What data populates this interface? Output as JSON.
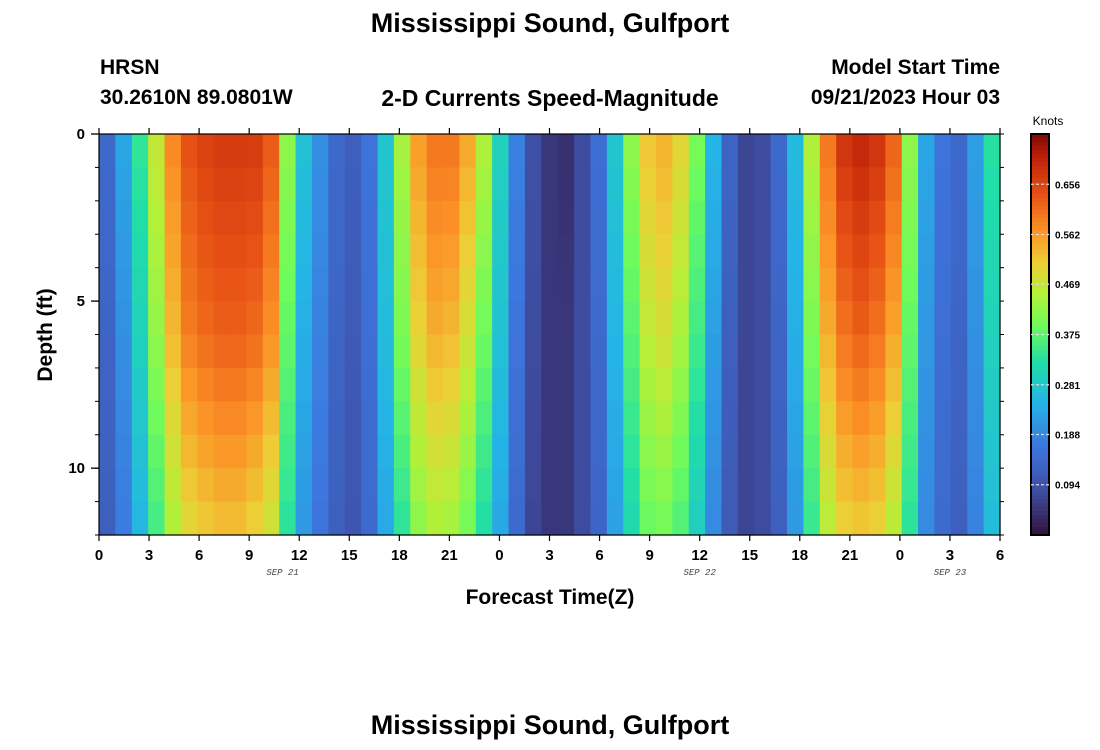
{
  "header": {
    "title": "Mississippi Sound, Gulfport",
    "station": "HRSN",
    "coords": "30.2610N  89.0801W",
    "subtitle": "2-D Currents Speed-Magnitude",
    "model_label": "Model Start Time",
    "model_time": "09/21/2023 Hour 03"
  },
  "footer": {
    "repeat_title": "Mississippi Sound, Gulfport"
  },
  "chart_data": {
    "type": "heatmap",
    "title": "2-D Currents Speed-Magnitude",
    "xlabel": "Forecast Time(Z)",
    "ylabel": "Depth (ft)",
    "x_range_hours": [
      0,
      54
    ],
    "y_range_ft": [
      0,
      12
    ],
    "x_tick_labels": [
      "0",
      "3",
      "6",
      "9",
      "12",
      "15",
      "18",
      "21",
      "0",
      "3",
      "6",
      "9",
      "12",
      "15",
      "18",
      "21",
      "0",
      "3",
      "6"
    ],
    "y_tick_labels": [
      "0",
      "5",
      "10"
    ],
    "y_tick_values": [
      0,
      5,
      10
    ],
    "date_labels": [
      {
        "text": "SEP 21",
        "hour": 11
      },
      {
        "text": "SEP 22",
        "hour": 36
      },
      {
        "text": "SEP 23",
        "hour": 51
      }
    ],
    "colorbar": {
      "unit": "Knots",
      "min": 0.0,
      "max": 0.75,
      "ticks": [
        "0.094",
        "0.188",
        "0.281",
        "0.375",
        "0.469",
        "0.562",
        "0.656"
      ],
      "tick_values": [
        0.094,
        0.188,
        0.281,
        0.375,
        0.469,
        0.562,
        0.656
      ]
    },
    "surface_speed_knots_by_hour": [
      0.14,
      0.23,
      0.34,
      0.47,
      0.58,
      0.64,
      0.66,
      0.67,
      0.67,
      0.67,
      0.63,
      0.42,
      0.27,
      0.2,
      0.14,
      0.12,
      0.16,
      0.28,
      0.44,
      0.56,
      0.6,
      0.6,
      0.55,
      0.45,
      0.3,
      0.18,
      0.09,
      0.05,
      0.04,
      0.08,
      0.15,
      0.28,
      0.42,
      0.52,
      0.54,
      0.5,
      0.4,
      0.25,
      0.13,
      0.07,
      0.08,
      0.14,
      0.26,
      0.45,
      0.6,
      0.68,
      0.7,
      0.68,
      0.62,
      0.42,
      0.23,
      0.16,
      0.14,
      0.22,
      0.33
    ],
    "depth_decay_note": "speed decreases with depth; peaks widen near 12 ft",
    "mid_depth_speed_knots_by_hour": [
      0.13,
      0.2,
      0.3,
      0.42,
      0.53,
      0.59,
      0.61,
      0.62,
      0.62,
      0.61,
      0.57,
      0.38,
      0.24,
      0.18,
      0.13,
      0.11,
      0.15,
      0.26,
      0.4,
      0.5,
      0.54,
      0.53,
      0.48,
      0.39,
      0.27,
      0.16,
      0.08,
      0.05,
      0.05,
      0.08,
      0.14,
      0.25,
      0.37,
      0.46,
      0.48,
      0.44,
      0.35,
      0.22,
      0.12,
      0.07,
      0.08,
      0.13,
      0.24,
      0.4,
      0.54,
      0.6,
      0.62,
      0.6,
      0.55,
      0.38,
      0.21,
      0.15,
      0.13,
      0.2,
      0.3
    ],
    "bottom_speed_knots_by_hour": [
      0.12,
      0.17,
      0.25,
      0.35,
      0.44,
      0.49,
      0.51,
      0.52,
      0.52,
      0.5,
      0.47,
      0.33,
      0.21,
      0.16,
      0.12,
      0.1,
      0.14,
      0.23,
      0.33,
      0.41,
      0.44,
      0.43,
      0.39,
      0.32,
      0.23,
      0.14,
      0.07,
      0.05,
      0.05,
      0.08,
      0.13,
      0.22,
      0.31,
      0.38,
      0.39,
      0.36,
      0.29,
      0.19,
      0.11,
      0.07,
      0.08,
      0.12,
      0.21,
      0.34,
      0.45,
      0.5,
      0.51,
      0.5,
      0.45,
      0.33,
      0.19,
      0.14,
      0.12,
      0.18,
      0.26
    ]
  }
}
